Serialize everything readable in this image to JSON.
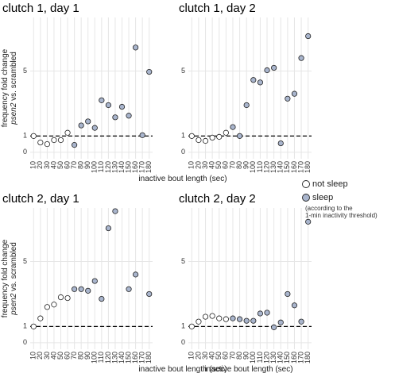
{
  "chart_data": [
    {
      "type": "scatter",
      "title": "clutch 1, day 1",
      "ylabel": {
        "gene": "psen2",
        "main": "frequency fold change",
        "rest": "vs. scrambled"
      },
      "xlabel": "inactive bout length (sec)",
      "categories": [
        "10",
        "20",
        "30",
        "40",
        "50",
        "60",
        "70",
        "80",
        "90",
        "100",
        "110",
        "120",
        "130",
        "140",
        "150",
        "160",
        "170",
        "180"
      ],
      "series": [
        {
          "name": "not sleep",
          "color": "#ffffff",
          "values": [
            1.0,
            0.6,
            0.5,
            0.75,
            0.75,
            1.2,
            null,
            null,
            null,
            null,
            null,
            null,
            null,
            null,
            null,
            null,
            null,
            null
          ]
        },
        {
          "name": "sleep",
          "color": "#a9b5cd",
          "values": [
            null,
            null,
            null,
            null,
            null,
            null,
            0.45,
            1.65,
            1.9,
            1.5,
            3.2,
            2.9,
            2.15,
            2.8,
            2.25,
            6.45,
            1.05,
            4.95
          ]
        }
      ],
      "ylim": [
        -0.4,
        8.3
      ],
      "yticks": [
        0,
        1,
        5
      ],
      "hline": 1,
      "grid": true
    },
    {
      "type": "scatter",
      "title": "clutch 1, day 2",
      "categories": [
        "10",
        "20",
        "30",
        "40",
        "50",
        "60",
        "70",
        "80",
        "90",
        "100",
        "110",
        "120",
        "130",
        "140",
        "150",
        "160",
        "170",
        "180"
      ],
      "series": [
        {
          "name": "not sleep",
          "color": "#ffffff",
          "values": [
            1.0,
            0.75,
            0.7,
            0.9,
            0.95,
            1.2,
            null,
            null,
            null,
            null,
            null,
            null,
            null,
            null,
            null,
            null,
            null,
            null
          ]
        },
        {
          "name": "sleep",
          "color": "#a9b5cd",
          "values": [
            null,
            null,
            null,
            null,
            null,
            null,
            1.55,
            1.0,
            2.9,
            4.45,
            4.3,
            5.05,
            5.2,
            0.55,
            3.3,
            3.6,
            5.8,
            7.15
          ]
        }
      ],
      "ylim": [
        -0.4,
        8.3
      ],
      "yticks": [
        0,
        1,
        5
      ],
      "hline": 1,
      "grid": true,
      "legend_note": [
        "(according to the",
        "1-min inactivity threshold)"
      ]
    },
    {
      "type": "scatter",
      "title": "clutch 2, day 1",
      "ylabel": {
        "gene": "psen2",
        "main": "frequency fold change",
        "rest": "vs. scrambled"
      },
      "xlabel": "inactive bout length (sec)",
      "categories": [
        "10",
        "20",
        "30",
        "40",
        "50",
        "60",
        "70",
        "80",
        "90",
        "100",
        "110",
        "120",
        "130",
        "140",
        "150",
        "160",
        "170",
        "180"
      ],
      "series": [
        {
          "name": "not sleep",
          "color": "#ffffff",
          "values": [
            1.0,
            1.5,
            2.2,
            2.35,
            2.8,
            2.75,
            null,
            null,
            null,
            null,
            null,
            null,
            null,
            null,
            null,
            null,
            null,
            null
          ]
        },
        {
          "name": "sleep",
          "color": "#a9b5cd",
          "values": [
            null,
            null,
            null,
            null,
            null,
            null,
            3.3,
            3.3,
            3.2,
            3.8,
            2.7,
            7.05,
            8.1,
            null,
            3.3,
            4.2,
            null,
            3.0
          ]
        }
      ],
      "ylim": [
        -0.4,
        8.3
      ],
      "yticks": [
        0,
        1,
        5
      ],
      "hline": 1,
      "grid": true
    },
    {
      "type": "scatter",
      "title": "clutch 2, day 2",
      "xlabel": "inactive bout length (sec)",
      "categories": [
        "10",
        "20",
        "30",
        "40",
        "50",
        "60",
        "70",
        "80",
        "90",
        "100",
        "110",
        "120",
        "130",
        "140",
        "150",
        "160",
        "170",
        "180"
      ],
      "series": [
        {
          "name": "not sleep",
          "color": "#ffffff",
          "values": [
            1.0,
            1.3,
            1.6,
            1.65,
            1.5,
            1.45,
            null,
            null,
            null,
            null,
            null,
            null,
            null,
            null,
            null,
            null,
            null,
            null
          ]
        },
        {
          "name": "sleep",
          "color": "#a9b5cd",
          "values": [
            null,
            null,
            null,
            null,
            null,
            null,
            1.5,
            1.45,
            1.35,
            1.35,
            1.8,
            1.85,
            0.95,
            1.25,
            3.0,
            2.3,
            1.3,
            7.45
          ]
        }
      ],
      "ylim": [
        -0.4,
        8.3
      ],
      "yticks": [
        0,
        1,
        5
      ],
      "hline": 1,
      "grid": true
    }
  ]
}
